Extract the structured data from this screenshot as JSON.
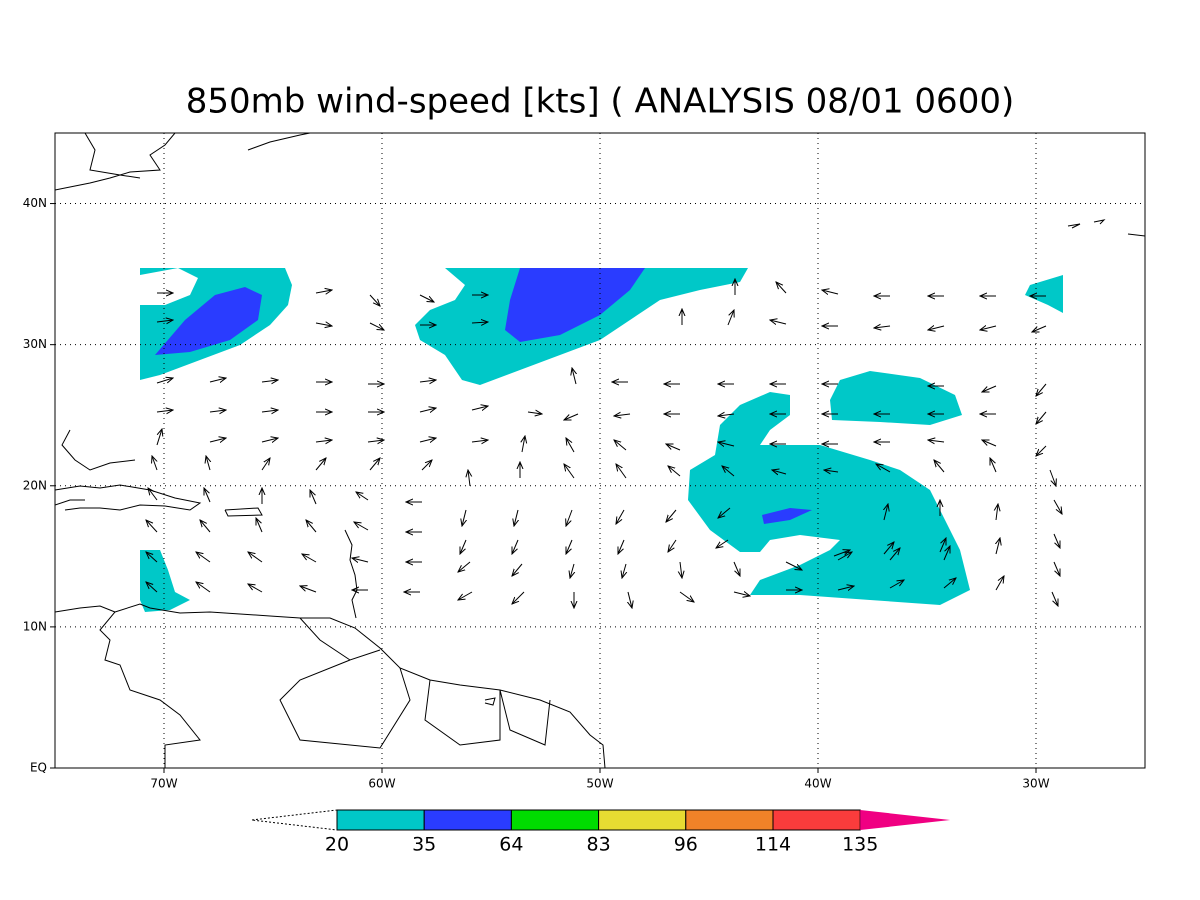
{
  "title": "850mb wind-speed [kts] ( ANALYSIS 08/01 0600)",
  "map": {
    "xlim": [
      -75,
      -25
    ],
    "ylim": [
      0,
      45
    ],
    "xticks": [
      {
        "value": -70,
        "label": "70W"
      },
      {
        "value": -60,
        "label": "60W"
      },
      {
        "value": -50,
        "label": "50W"
      },
      {
        "value": -40,
        "label": "40W"
      },
      {
        "value": -30,
        "label": "30W"
      }
    ],
    "yticks": [
      {
        "value": 40,
        "label": "40N"
      },
      {
        "value": 30,
        "label": "30N"
      },
      {
        "value": 20,
        "label": "20N"
      },
      {
        "value": 10,
        "label": "10N"
      },
      {
        "value": 0,
        "label": "EQ"
      }
    ],
    "grid": true
  },
  "colorbar": {
    "levels": [
      20,
      35,
      64,
      83,
      96,
      114,
      135
    ],
    "colors": [
      "#ffffff",
      "#00c8c8",
      "#2a3cff",
      "#00dc00",
      "#e6dc32",
      "#f08228",
      "#fa3c3c",
      "#f00082"
    ]
  }
}
